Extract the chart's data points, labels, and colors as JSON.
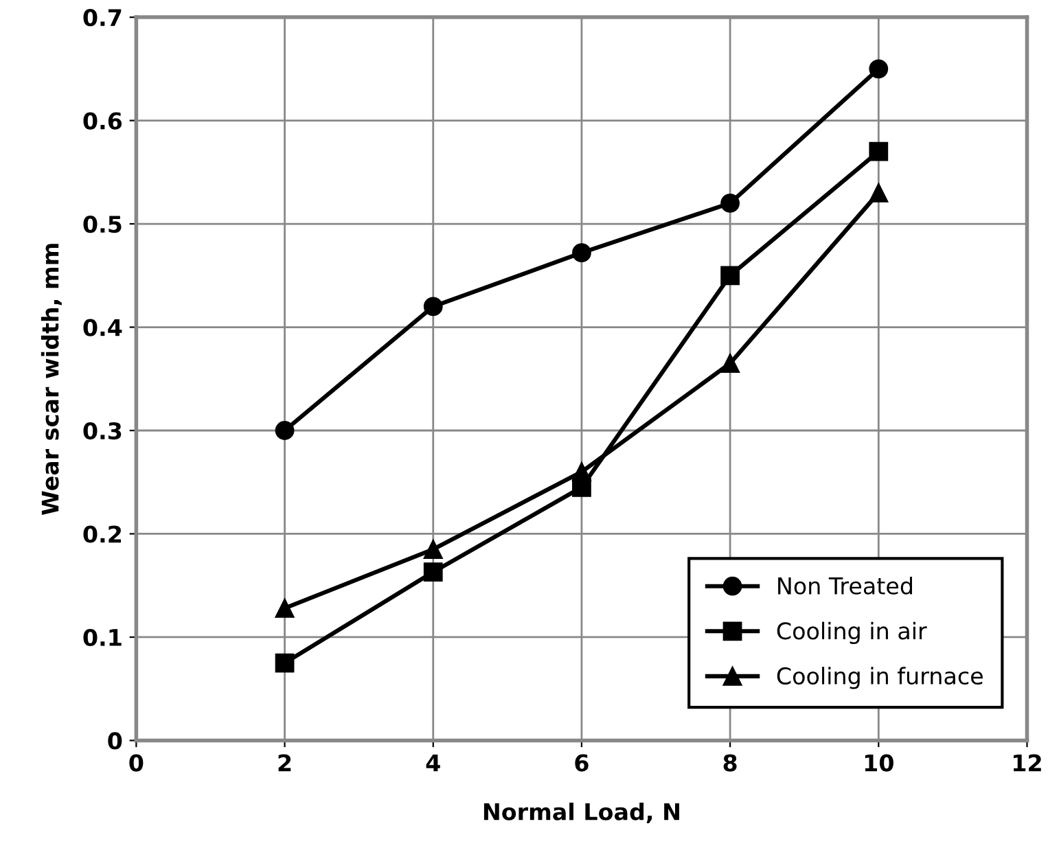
{
  "chart_data": {
    "type": "line",
    "xlabel": "Normal Load, N",
    "ylabel": "Wear scar width, mm",
    "x": [
      2,
      4,
      6,
      8,
      10
    ],
    "series": [
      {
        "name": "Non Treated",
        "color": "#000000",
        "marker": "circle",
        "values": [
          0.3,
          0.42,
          0.472,
          0.52,
          0.65
        ]
      },
      {
        "name": "Cooling in air",
        "color": "#000000",
        "marker": "square",
        "values": [
          0.075,
          0.163,
          0.245,
          0.45,
          0.57
        ]
      },
      {
        "name": "Cooling in furnace",
        "color": "#000000",
        "marker": "triangle",
        "values": [
          0.128,
          0.185,
          0.26,
          0.365,
          0.53
        ]
      }
    ],
    "xlim": [
      0,
      12
    ],
    "xticks": [
      0,
      2,
      4,
      6,
      8,
      10,
      12
    ],
    "ylim": [
      0,
      0.7
    ],
    "yticks": [
      0,
      0.1,
      0.2,
      0.3,
      0.4,
      0.5,
      0.6,
      0.7
    ],
    "grid": true,
    "legend": "bottom right",
    "line_style": "solid"
  }
}
